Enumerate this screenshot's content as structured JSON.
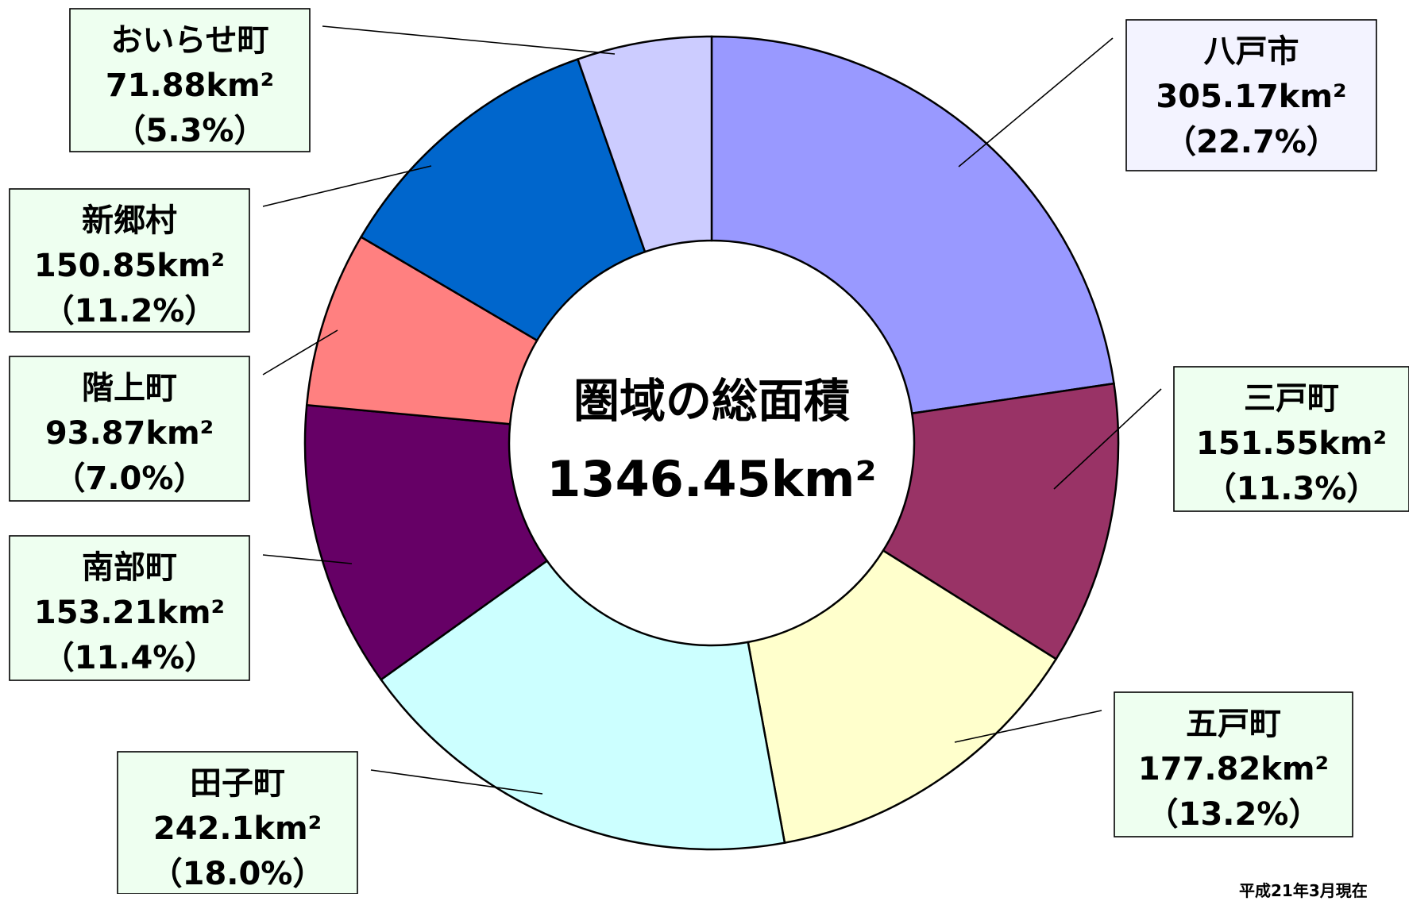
{
  "chart_data": {
    "type": "pie",
    "variant": "donut",
    "title": "圏域の総面積",
    "center_value": "1346.45km²",
    "legend": "none",
    "slices": [
      {
        "name": "八戸市",
        "value": 305.17,
        "area_label": "305.17km²",
        "percent_label": "（22.7%）",
        "color": "#9999ff"
      },
      {
        "name": "三戸町",
        "value": 151.55,
        "area_label": "151.55km²",
        "percent_label": "（11.3%）",
        "color": "#993366"
      },
      {
        "name": "五戸町",
        "value": 177.82,
        "area_label": "177.82km²",
        "percent_label": "（13.2%）",
        "color": "#ffffcc"
      },
      {
        "name": "田子町",
        "value": 242.1,
        "area_label": "242.1km²",
        "percent_label": "（18.0%）",
        "color": "#ccffff"
      },
      {
        "name": "南部町",
        "value": 153.21,
        "area_label": "153.21km²",
        "percent_label": "（11.4%）",
        "color": "#660066"
      },
      {
        "name": "階上町",
        "value": 93.87,
        "area_label": "93.87km²",
        "percent_label": "（7.0%）",
        "color": "#ff8080"
      },
      {
        "name": "新郷村",
        "value": 150.85,
        "area_label": "150.85km²",
        "percent_label": "（11.2%）",
        "color": "#0066cc"
      },
      {
        "name": "おいらせ町",
        "value": 71.88,
        "area_label": "71.88km²",
        "percent_label": "（5.3%）",
        "color": "#ccccff"
      }
    ],
    "label_box_colors": {
      "default": "#eefff0",
      "first": "#f3f3ff"
    }
  },
  "footnote": "平成21年3月現在"
}
